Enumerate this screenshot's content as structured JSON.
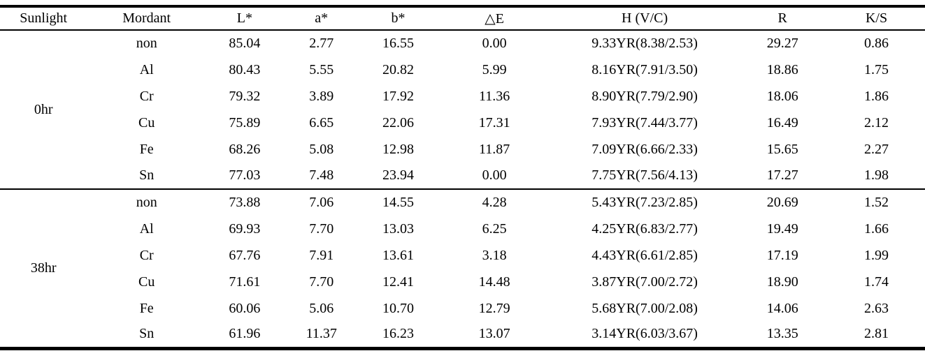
{
  "table": {
    "columns": [
      {
        "key": "sunlight",
        "label": "Sunlight"
      },
      {
        "key": "mordant",
        "label": "Mordant"
      },
      {
        "key": "L_star",
        "label": "L*"
      },
      {
        "key": "a_star",
        "label": "a*"
      },
      {
        "key": "b_star",
        "label": "b*"
      },
      {
        "key": "delta_E",
        "label": "△E"
      },
      {
        "key": "H_VC",
        "label": "H (V/C)"
      },
      {
        "key": "R",
        "label": "R"
      },
      {
        "key": "K_S",
        "label": "K/S"
      }
    ],
    "groups": [
      {
        "sunlight": "0hr",
        "rows": [
          {
            "mordant": "non",
            "L_star": "85.04",
            "a_star": "2.77",
            "b_star": "16.55",
            "delta_E": "0.00",
            "H_VC": "9.33YR(8.38/2.53)",
            "R": "29.27",
            "K_S": "0.86"
          },
          {
            "mordant": "Al",
            "L_star": "80.43",
            "a_star": "5.55",
            "b_star": "20.82",
            "delta_E": "5.99",
            "H_VC": "8.16YR(7.91/3.50)",
            "R": "18.86",
            "K_S": "1.75"
          },
          {
            "mordant": "Cr",
            "L_star": "79.32",
            "a_star": "3.89",
            "b_star": "17.92",
            "delta_E": "11.36",
            "H_VC": "8.90YR(7.79/2.90)",
            "R": "18.06",
            "K_S": "1.86"
          },
          {
            "mordant": "Cu",
            "L_star": "75.89",
            "a_star": "6.65",
            "b_star": "22.06",
            "delta_E": "17.31",
            "H_VC": "7.93YR(7.44/3.77)",
            "R": "16.49",
            "K_S": "2.12"
          },
          {
            "mordant": "Fe",
            "L_star": "68.26",
            "a_star": "5.08",
            "b_star": "12.98",
            "delta_E": "11.87",
            "H_VC": "7.09YR(6.66/2.33)",
            "R": "15.65",
            "K_S": "2.27"
          },
          {
            "mordant": "Sn",
            "L_star": "77.03",
            "a_star": "7.48",
            "b_star": "23.94",
            "delta_E": "0.00",
            "H_VC": "7.75YR(7.56/4.13)",
            "R": "17.27",
            "K_S": "1.98"
          }
        ]
      },
      {
        "sunlight": "38hr",
        "rows": [
          {
            "mordant": "non",
            "L_star": "73.88",
            "a_star": "7.06",
            "b_star": "14.55",
            "delta_E": "4.28",
            "H_VC": "5.43YR(7.23/2.85)",
            "R": "20.69",
            "K_S": "1.52"
          },
          {
            "mordant": "Al",
            "L_star": "69.93",
            "a_star": "7.70",
            "b_star": "13.03",
            "delta_E": "6.25",
            "H_VC": "4.25YR(6.83/2.77)",
            "R": "19.49",
            "K_S": "1.66"
          },
          {
            "mordant": "Cr",
            "L_star": "67.76",
            "a_star": "7.91",
            "b_star": "13.61",
            "delta_E": "3.18",
            "H_VC": "4.43YR(6.61/2.85)",
            "R": "17.19",
            "K_S": "1.99"
          },
          {
            "mordant": "Cu",
            "L_star": "71.61",
            "a_star": "7.70",
            "b_star": "12.41",
            "delta_E": "14.48",
            "H_VC": "3.87YR(7.00/2.72)",
            "R": "18.90",
            "K_S": "1.74"
          },
          {
            "mordant": "Fe",
            "L_star": "60.06",
            "a_star": "5.06",
            "b_star": "10.70",
            "delta_E": "12.79",
            "H_VC": "5.68YR(7.00/2.08)",
            "R": "14.06",
            "K_S": "2.63"
          },
          {
            "mordant": "Sn",
            "L_star": "61.96",
            "a_star": "11.37",
            "b_star": "16.23",
            "delta_E": "13.07",
            "H_VC": "3.14YR(6.03/3.67)",
            "R": "13.35",
            "K_S": "2.81"
          }
        ]
      }
    ]
  },
  "colors": {
    "text": "#000000",
    "rule": "#000000",
    "background": "#ffffff"
  }
}
